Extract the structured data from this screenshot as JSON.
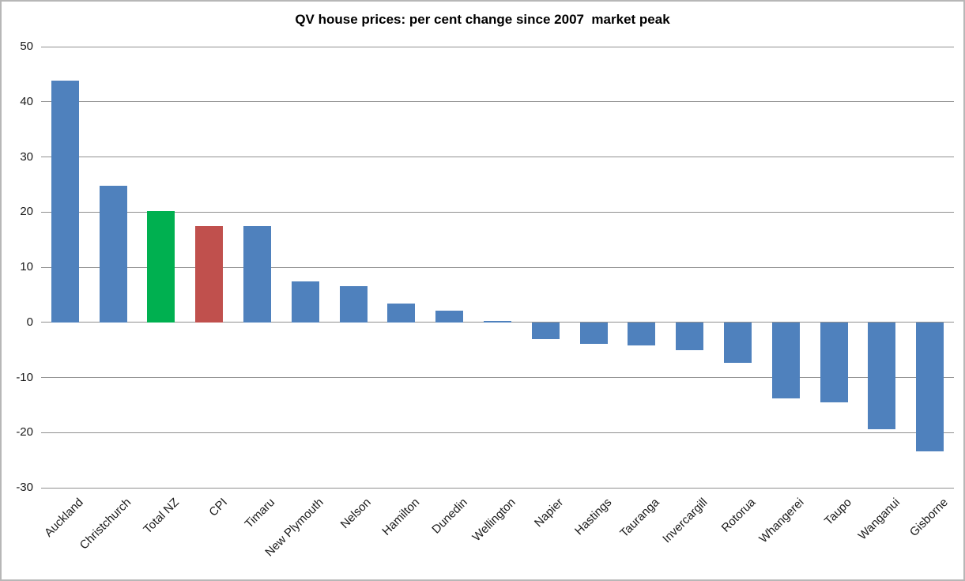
{
  "chart_data": {
    "type": "bar",
    "title": "QV house prices: per cent change since 2007  market peak",
    "categories": [
      "Auckland",
      "Christchurch",
      "Total NZ",
      "CPI",
      "Timaru",
      "New Plymouth",
      "Nelson",
      "Hamilton",
      "Dunedin",
      "Wellington",
      "Napier",
      "Hastings",
      "Tauranga",
      "Invercargill",
      "Rotorua",
      "Whangerei",
      "Taupo",
      "Wanganui",
      "Gisborne"
    ],
    "values": [
      43.8,
      24.7,
      20.2,
      17.4,
      17.4,
      7.4,
      6.6,
      3.4,
      2.1,
      0.3,
      -3.1,
      -3.9,
      -4.2,
      -5.1,
      -7.3,
      -13.8,
      -14.5,
      -19.4,
      -23.4
    ],
    "bar_colors": [
      "#4F81BD",
      "#4F81BD",
      "#00B050",
      "#C0504D",
      "#4F81BD",
      "#4F81BD",
      "#4F81BD",
      "#4F81BD",
      "#4F81BD",
      "#4F81BD",
      "#4F81BD",
      "#4F81BD",
      "#4F81BD",
      "#4F81BD",
      "#4F81BD",
      "#4F81BD",
      "#4F81BD",
      "#4F81BD",
      "#4F81BD"
    ],
    "xlabel": "",
    "ylabel": "",
    "ylim": [
      -30,
      50
    ],
    "yticks": [
      50,
      40,
      30,
      20,
      10,
      0,
      -10,
      -20,
      -30
    ],
    "grid": true,
    "legend_position": "none",
    "colors": {
      "default_bar": "#4F81BD",
      "total_nz_bar": "#00B050",
      "cpi_bar": "#C0504D",
      "gridline": "#909090",
      "chart_border": "#B7B7B7",
      "title_text": "#000000",
      "tick_text": "#1A1A1A",
      "background": "#FFFFFF"
    }
  }
}
